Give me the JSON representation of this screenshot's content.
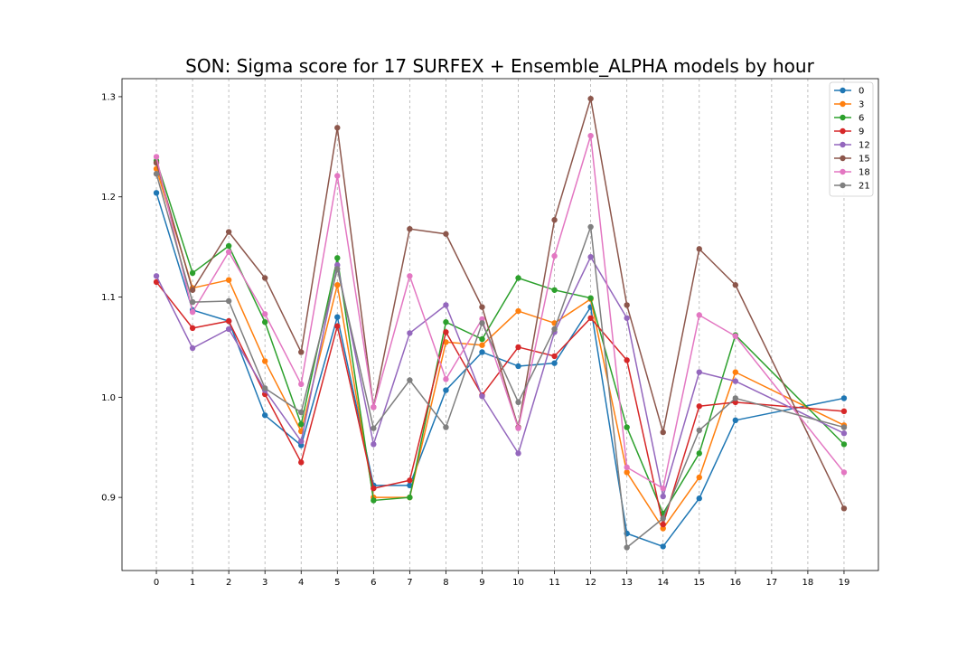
{
  "chart_data": {
    "type": "line",
    "title": "SON: Sigma score for 17 SURFEX + Ensemble_ALPHA models by hour",
    "xlabel": "",
    "ylabel": "",
    "x_ticks": [
      "0",
      "1",
      "2",
      "3",
      "4",
      "5",
      "6",
      "7",
      "8",
      "9",
      "10",
      "11",
      "12",
      "13",
      "14",
      "15",
      "16",
      "17",
      "18",
      "19"
    ],
    "y_ticks": [
      "0.9",
      "1.0",
      "1.1",
      "1.2",
      "1.3"
    ],
    "xlim": [
      -0.95,
      19.95
    ],
    "ylim": [
      0.827,
      1.318
    ],
    "grid": "vertical-dashed",
    "legend_position": "top-right",
    "series": [
      {
        "name": "0",
        "color": "#1f77b4",
        "x": [
          0,
          1,
          2,
          3,
          4,
          5,
          6,
          7,
          8,
          9,
          10,
          11,
          12,
          13,
          14,
          15,
          16,
          19
        ],
        "values": [
          1.204,
          1.087,
          1.076,
          0.982,
          0.952,
          1.08,
          0.912,
          0.912,
          1.007,
          1.045,
          1.031,
          1.034,
          1.09,
          0.864,
          0.851,
          0.899,
          0.977,
          0.999
        ]
      },
      {
        "name": "3",
        "color": "#ff7f0e",
        "x": [
          0,
          1,
          2,
          3,
          4,
          5,
          6,
          7,
          8,
          9,
          10,
          11,
          12,
          13,
          14,
          15,
          16,
          19
        ],
        "values": [
          1.228,
          1.109,
          1.117,
          1.036,
          0.966,
          1.112,
          0.9,
          0.9,
          1.055,
          1.052,
          1.086,
          1.074,
          1.098,
          0.925,
          0.869,
          0.92,
          1.025,
          0.972
        ]
      },
      {
        "name": "6",
        "color": "#2ca02c",
        "x": [
          0,
          1,
          2,
          3,
          4,
          5,
          6,
          7,
          8,
          9,
          10,
          11,
          12,
          13,
          14,
          15,
          16,
          19
        ],
        "values": [
          1.236,
          1.124,
          1.151,
          1.075,
          0.973,
          1.139,
          0.897,
          0.9,
          1.075,
          1.058,
          1.119,
          1.107,
          1.099,
          0.97,
          0.884,
          0.944,
          1.062,
          0.953
        ]
      },
      {
        "name": "9",
        "color": "#d62728",
        "x": [
          0,
          1,
          2,
          3,
          4,
          5,
          6,
          7,
          8,
          9,
          10,
          11,
          12,
          13,
          14,
          15,
          16,
          19
        ],
        "values": [
          1.115,
          1.069,
          1.076,
          1.003,
          0.935,
          1.071,
          0.909,
          0.917,
          1.065,
          1.002,
          1.05,
          1.041,
          1.079,
          1.037,
          0.873,
          0.991,
          0.995,
          0.986
        ]
      },
      {
        "name": "12",
        "color": "#9467bd",
        "x": [
          0,
          1,
          2,
          3,
          4,
          5,
          6,
          7,
          8,
          9,
          10,
          11,
          12,
          13,
          14,
          15,
          16,
          19
        ],
        "values": [
          1.121,
          1.049,
          1.068,
          1.007,
          0.956,
          1.132,
          0.953,
          1.064,
          1.092,
          1.001,
          0.944,
          1.065,
          1.14,
          1.079,
          0.901,
          1.025,
          1.016,
          0.964
        ]
      },
      {
        "name": "15",
        "color": "#8c564b",
        "x": [
          0,
          1,
          2,
          3,
          4,
          5,
          6,
          7,
          8,
          9,
          10,
          11,
          12,
          13,
          14,
          15,
          16,
          19
        ],
        "values": [
          1.234,
          1.107,
          1.165,
          1.119,
          1.045,
          1.269,
          0.99,
          1.168,
          1.163,
          1.09,
          0.97,
          1.177,
          1.298,
          1.092,
          0.965,
          1.148,
          1.112,
          0.889
        ]
      },
      {
        "name": "18",
        "color": "#e377c2",
        "x": [
          0,
          1,
          2,
          3,
          4,
          5,
          6,
          7,
          8,
          9,
          10,
          11,
          12,
          13,
          14,
          15,
          16,
          19
        ],
        "values": [
          1.24,
          1.085,
          1.145,
          1.083,
          1.013,
          1.221,
          0.99,
          1.121,
          1.018,
          1.078,
          0.969,
          1.141,
          1.261,
          0.93,
          0.909,
          1.082,
          1.061,
          0.925
        ]
      },
      {
        "name": "21",
        "color": "#7f7f7f",
        "x": [
          0,
          1,
          2,
          3,
          4,
          5,
          6,
          7,
          8,
          9,
          10,
          11,
          12,
          13,
          14,
          15,
          16,
          19
        ],
        "values": [
          1.223,
          1.095,
          1.096,
          1.009,
          0.985,
          1.128,
          0.969,
          1.017,
          0.97,
          1.074,
          0.995,
          1.068,
          1.17,
          0.85,
          0.879,
          0.967,
          0.999,
          0.97
        ]
      }
    ]
  }
}
